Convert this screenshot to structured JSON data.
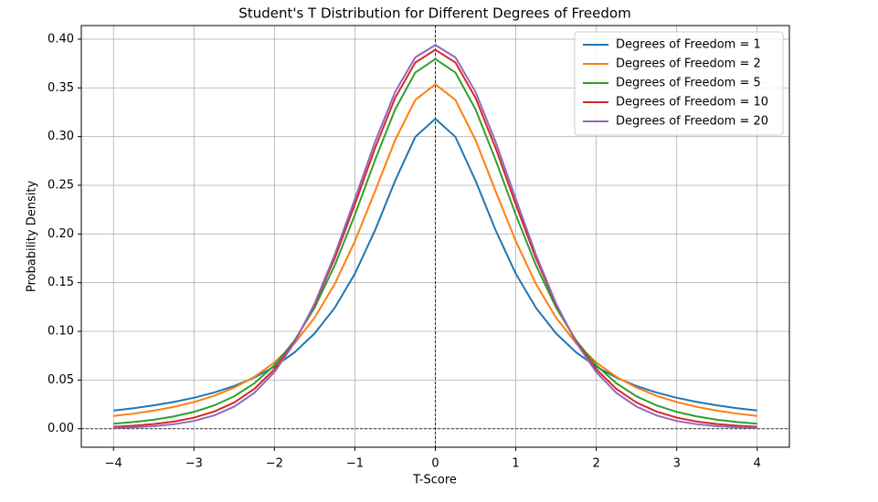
{
  "chart_data": {
    "type": "line",
    "title": "Student's T Distribution for Different Degrees of Freedom",
    "xlabel": "T-Score",
    "ylabel": "Probability Density",
    "x": [
      -4,
      -3.75,
      -3.5,
      -3.25,
      -3,
      -2.75,
      -2.5,
      -2.25,
      -2,
      -1.75,
      -1.5,
      -1.25,
      -1,
      -0.75,
      -0.5,
      -0.25,
      0,
      0.25,
      0.5,
      0.75,
      1,
      1.25,
      1.5,
      1.75,
      2,
      2.25,
      2.5,
      2.75,
      3,
      3.25,
      3.5,
      3.75,
      4
    ],
    "series": [
      {
        "name": "Degrees of Freedom = 1",
        "color": "#1f77b4",
        "values": [
          0.0187,
          0.0211,
          0.024,
          0.0275,
          0.0318,
          0.0372,
          0.0439,
          0.0525,
          0.0637,
          0.0784,
          0.0979,
          0.1242,
          0.1592,
          0.2037,
          0.2546,
          0.2996,
          0.3183,
          0.2996,
          0.2546,
          0.2037,
          0.1592,
          0.1242,
          0.0979,
          0.0784,
          0.0637,
          0.0525,
          0.0439,
          0.0372,
          0.0318,
          0.0275,
          0.024,
          0.0211,
          0.0187
        ]
      },
      {
        "name": "Degrees of Freedom = 2",
        "color": "#ff7f0e",
        "values": [
          0.0131,
          0.0155,
          0.0186,
          0.0225,
          0.0274,
          0.0338,
          0.0422,
          0.0533,
          0.068,
          0.0878,
          0.1141,
          0.1487,
          0.1925,
          0.2438,
          0.2963,
          0.3376,
          0.3536,
          0.3376,
          0.2963,
          0.2438,
          0.1925,
          0.1487,
          0.1141,
          0.0878,
          0.068,
          0.0533,
          0.0422,
          0.0338,
          0.0274,
          0.0225,
          0.0186,
          0.0155,
          0.0131
        ]
      },
      {
        "name": "Degrees of Freedom = 5",
        "color": "#2ca02c",
        "values": [
          0.0051,
          0.0069,
          0.0092,
          0.0126,
          0.0173,
          0.0239,
          0.0333,
          0.0466,
          0.0651,
          0.0905,
          0.1245,
          0.1679,
          0.2197,
          0.2757,
          0.3279,
          0.3657,
          0.3796,
          0.3657,
          0.3279,
          0.2757,
          0.2197,
          0.1679,
          0.1245,
          0.0905,
          0.0651,
          0.0466,
          0.0333,
          0.0239,
          0.0173,
          0.0126,
          0.0092,
          0.0069,
          0.0051
        ]
      },
      {
        "name": "Degrees of Freedom = 10",
        "color": "#d62728",
        "values": [
          0.002,
          0.0031,
          0.0048,
          0.0074,
          0.0114,
          0.0176,
          0.0269,
          0.0409,
          0.0611,
          0.0895,
          0.1274,
          0.1751,
          0.2304,
          0.288,
          0.3397,
          0.376,
          0.3891,
          0.376,
          0.3397,
          0.288,
          0.2304,
          0.1751,
          0.1274,
          0.0895,
          0.0611,
          0.0409,
          0.0269,
          0.0176,
          0.0114,
          0.0074,
          0.0048,
          0.0031,
          0.002
        ]
      },
      {
        "name": "Degrees of Freedom = 20",
        "color": "#9467bd",
        "values": [
          0.0008,
          0.0015,
          0.0026,
          0.0046,
          0.008,
          0.0136,
          0.0227,
          0.0368,
          0.0581,
          0.0883,
          0.1286,
          0.1788,
          0.236,
          0.2944,
          0.3458,
          0.3813,
          0.394,
          0.3813,
          0.3458,
          0.2944,
          0.236,
          0.1788,
          0.1286,
          0.0883,
          0.0581,
          0.0368,
          0.0227,
          0.0136,
          0.008,
          0.0046,
          0.0026,
          0.0015,
          0.0008
        ]
      }
    ],
    "xlim": [
      -4.4,
      4.4
    ],
    "ylim": [
      -0.019,
      0.414
    ],
    "xticks": [
      {
        "value": -4,
        "label": "−4"
      },
      {
        "value": -3,
        "label": "−3"
      },
      {
        "value": -2,
        "label": "−2"
      },
      {
        "value": -1,
        "label": "−1"
      },
      0,
      1,
      2,
      3,
      4
    ],
    "yticks": [
      {
        "value": 0,
        "label": "0.00"
      },
      {
        "value": 0.05,
        "label": "0.05"
      },
      {
        "value": 0.1,
        "label": "0.10"
      },
      {
        "value": 0.15,
        "label": "0.15"
      },
      {
        "value": 0.2,
        "label": "0.20"
      },
      {
        "value": 0.25,
        "label": "0.25"
      },
      {
        "value": 0.3,
        "label": "0.30"
      },
      {
        "value": 0.35,
        "label": "0.35"
      },
      {
        "value": 0.4,
        "label": "0.40"
      }
    ],
    "axhline": 0,
    "axvline": 0,
    "grid": true,
    "legend": "upper right"
  }
}
